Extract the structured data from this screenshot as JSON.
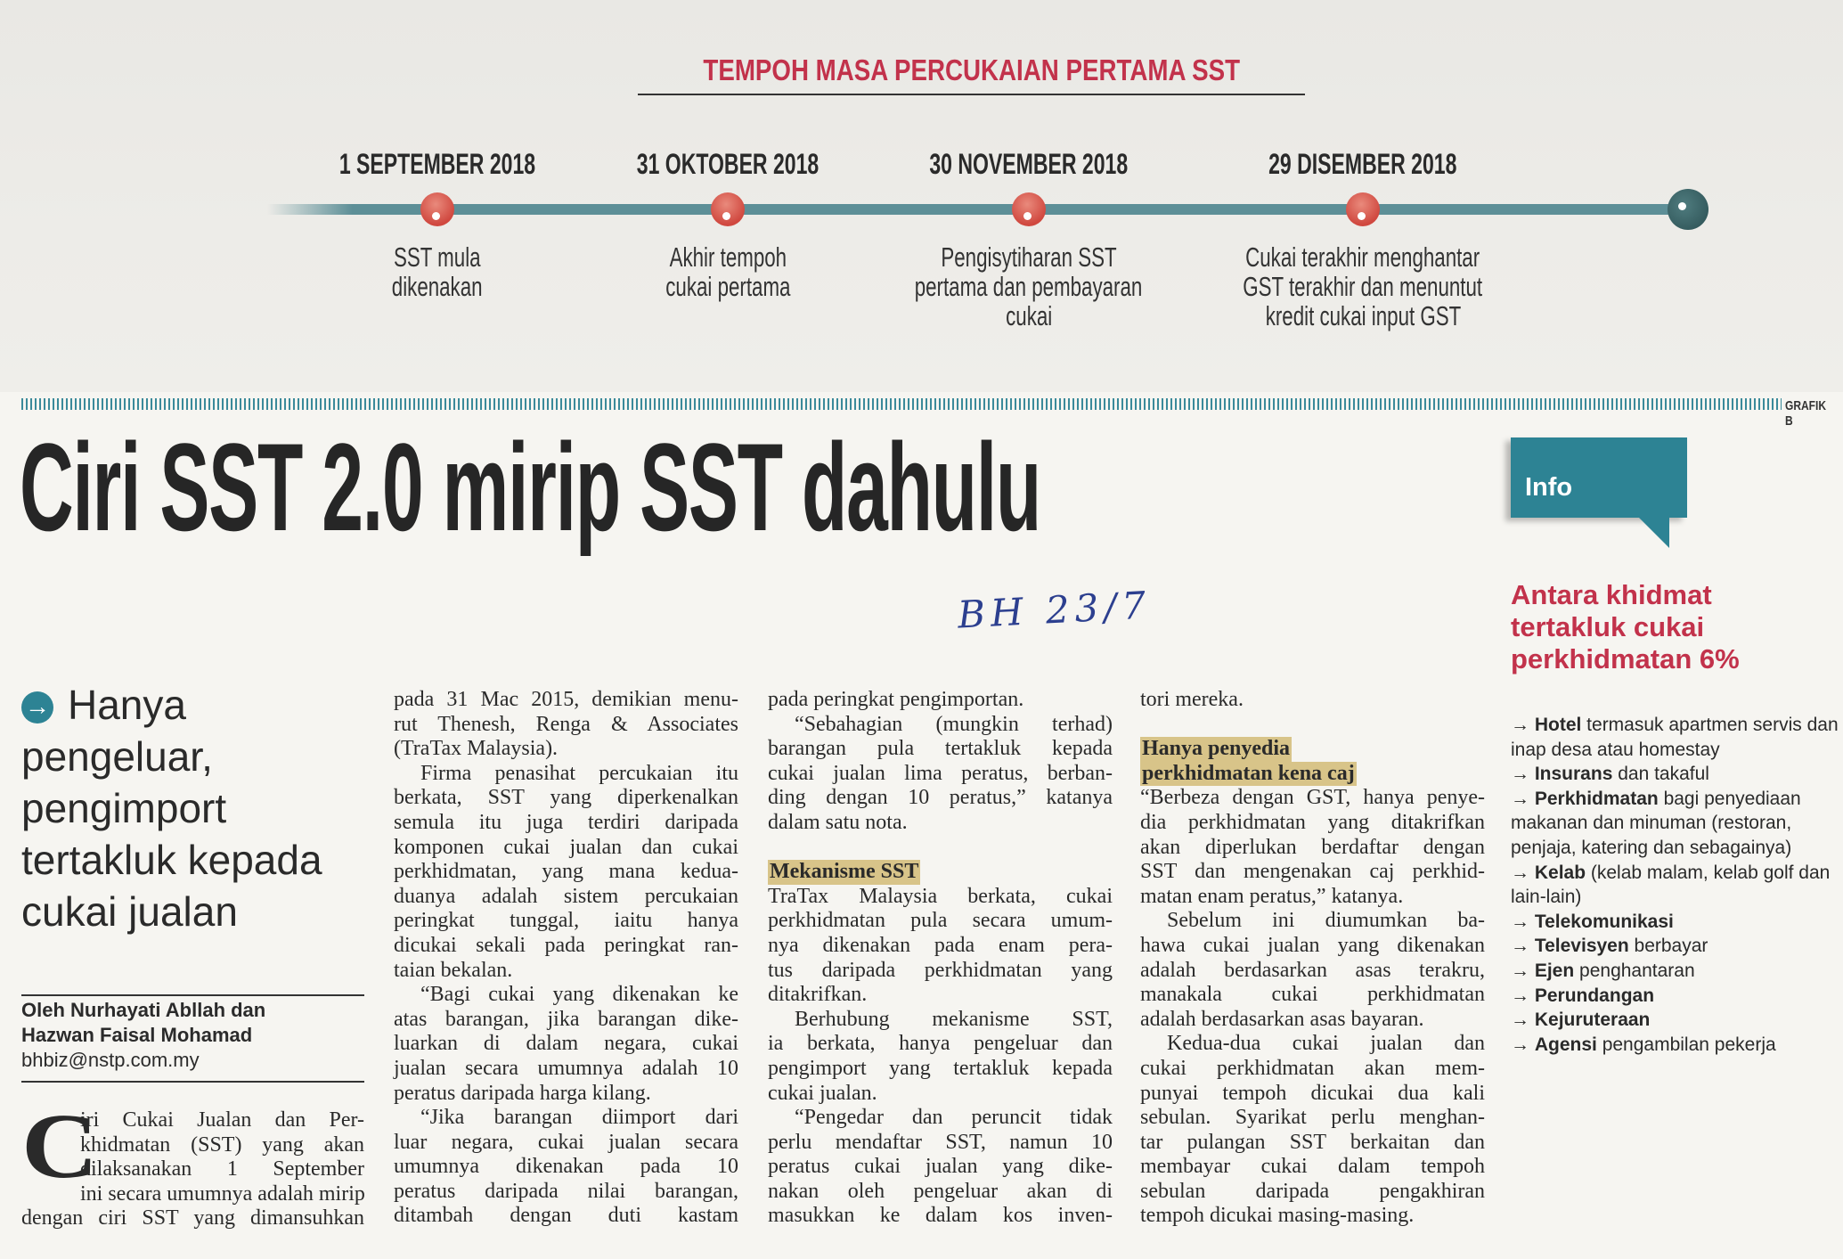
{
  "timeline": {
    "title": "TEMPOH MASA PERCUKAIAN PERTAMA SST",
    "events": [
      {
        "date": "1 SEPTEMBER 2018",
        "desc": [
          "SST mula",
          "dikenakan"
        ]
      },
      {
        "date": "31 OKTOBER 2018",
        "desc": [
          "Akhir tempoh",
          "cukai pertama"
        ]
      },
      {
        "date": "30 NOVEMBER 2018",
        "desc": [
          "Pengisytiharan SST",
          "pertama dan pembayaran",
          "cukai"
        ]
      },
      {
        "date": "29 DISEMBER 2018",
        "desc": [
          "Cukai terakhir menghantar",
          "GST terakhir dan menuntut",
          "kredit cukai input GST"
        ]
      }
    ],
    "credit": "GRAFIK B"
  },
  "headline": "Ciri SST 2.0 mirip SST dahulu",
  "handwritten_note": "BH 23/7",
  "subhead": {
    "icon": "arrow-right-circle-icon",
    "lines": [
      "Hanya",
      "pengeluar,",
      "pengimport",
      "tertakluk kepada",
      "cukai jualan"
    ]
  },
  "byline": {
    "authors": [
      "Oleh Nurhayati Abllah dan",
      "Hazwan Faisal Mohamad"
    ],
    "email": "bhbiz@nstp.com.my"
  },
  "article": {
    "drop_cap": "C",
    "col1": [
      {
        "lines": [
          "iri Cukai Jualan dan Per-",
          "khidmatan (SST) yang akan",
          "dilaksanakan 1 September",
          "ini secara umumnya adalah mirip",
          "dengan ciri SST yang dimansuhkan"
        ],
        "open": true
      }
    ],
    "col2": [
      {
        "lines": [
          "pada 31 Mac 2015, demikian menu-",
          "rut Thenesh, Renga & Associates",
          "(TraTax Malaysia)."
        ]
      },
      {
        "indent": true,
        "lines": [
          "Firma penasihat percukaian itu",
          "berkata, SST yang diperkenalkan",
          "semula itu juga terdiri daripada",
          "komponen cukai jualan dan cukai",
          "perkhidmatan, yang mana kedua-",
          "duanya adalah sistem percukaian",
          "peringkat tunggal, iaitu hanya",
          "dicukai sekali pada peringkat ran-",
          "taian bekalan."
        ]
      },
      {
        "indent": true,
        "lines": [
          "“Bagi cukai yang dikenakan ke",
          "atas barangan, jika barangan dike-",
          "luarkan di dalam negara, cukai",
          "jualan secara umumnya adalah 10",
          "peratus daripada harga kilang."
        ]
      },
      {
        "indent": true,
        "open": true,
        "lines": [
          "“Jika barangan diimport dari",
          "luar negara, cukai jualan secara",
          "umumnya dikenakan pada 10",
          "peratus daripada nilai barangan,",
          "ditambah dengan duti kastam"
        ]
      }
    ],
    "col3": [
      {
        "lines": [
          "pada peringkat pengimportan."
        ]
      },
      {
        "indent": true,
        "lines": [
          "“Sebahagian (mungkin terhad)",
          "barangan pula tertakluk kepada",
          "cukai jualan lima peratus, berban-",
          "ding dengan 10 peratus,” katanya",
          "dalam satu nota."
        ]
      },
      {
        "gap": true
      },
      {
        "heading": [
          "Mekanisme SST"
        ]
      },
      {
        "lines": [
          "TraTax Malaysia berkata, cukai",
          "perkhidmatan pula secara umum-",
          "nya dikenakan pada enam pera-",
          "tus daripada perkhidmatan yang",
          "ditakrifkan."
        ]
      },
      {
        "indent": true,
        "lines": [
          "Berhubung mekanisme SST,",
          "ia berkata, hanya pengeluar dan",
          "pengimport yang tertakluk kepada",
          "cukai jualan."
        ]
      },
      {
        "indent": true,
        "open": true,
        "lines": [
          "“Pengedar dan peruncit tidak",
          "perlu mendaftar SST, namun 10",
          "peratus cukai jualan yang dike-",
          "nakan oleh pengeluar akan di",
          "masukkan ke dalam kos inven-"
        ]
      }
    ],
    "col4": [
      {
        "lines": [
          "tori mereka."
        ]
      },
      {
        "gap": true
      },
      {
        "heading": [
          "Hanya penyedia",
          "perkhidmatan kena caj"
        ]
      },
      {
        "lines": [
          "“Berbeza dengan GST, hanya penye-",
          "dia perkhidmatan yang ditakrifkan",
          "akan diperlukan berdaftar dengan",
          "SST dan mengenakan caj perkhid-",
          "matan enam peratus,” katanya."
        ]
      },
      {
        "indent": true,
        "lines": [
          "Sebelum ini diumumkan ba-",
          "hawa cukai jualan yang dikenakan",
          "adalah berdasarkan asas terakru,",
          "manakala cukai perkhidmatan",
          "adalah berdasarkan asas bayaran."
        ]
      },
      {
        "indent": true,
        "lines": [
          "Kedua-dua cukai jualan dan",
          "cukai perkhidmatan akan mem-",
          "punyai tempoh dicukai dua kali",
          "sebulan. Syarikat perlu menghan-",
          "tar pulangan SST berkaitan dan",
          "membayar cukai dalam tempoh",
          "sebulan daripada pengakhiran",
          "tempoh dicukai masing-masing."
        ]
      }
    ]
  },
  "info": {
    "label": "Info",
    "heading": [
      "Antara khidmat",
      "tertakluk cukai",
      "perkhidmatan 6%"
    ],
    "items": [
      {
        "bold": "Hotel",
        "rest": " termasuk apartmen servis dan inap desa atau homestay"
      },
      {
        "bold": "Insurans",
        "rest": " dan takaful"
      },
      {
        "bold": "Perkhidmatan",
        "rest": " bagi penyediaan makanan dan minuman (restoran, penjaja, katering dan sebagainya)"
      },
      {
        "bold": "Kelab",
        "rest": " (kelab malam, kelab golf dan lain-lain)"
      },
      {
        "bold": "Telekomunikasi",
        "rest": ""
      },
      {
        "bold": "Televisyen",
        "rest": " berbayar"
      },
      {
        "bold": "Ejen",
        "rest": " penghantaran"
      },
      {
        "bold": "Perundangan",
        "rest": ""
      },
      {
        "bold": "Kejuruteraan",
        "rest": ""
      },
      {
        "bold": "Agensi",
        "rest": " pengambilan pekerja"
      }
    ],
    "colors": {
      "accent_teal": "#2d8394",
      "heading_red": "#c2324b",
      "highlight": "#d8c489"
    }
  }
}
